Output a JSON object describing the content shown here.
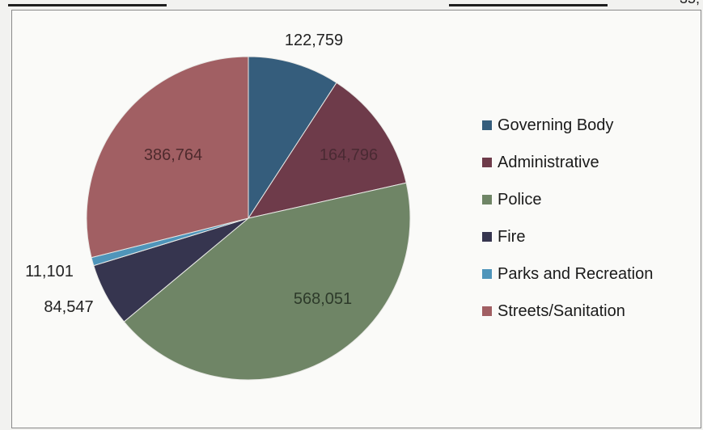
{
  "page": {
    "top_fragment": "35,"
  },
  "chart_data": {
    "type": "pie",
    "title": "",
    "categories": [
      "Governing Body",
      "Administrative",
      "Police",
      "Fire",
      "Parks and Recreation",
      "Streets/Sanitation"
    ],
    "values": [
      122759,
      164796,
      568051,
      84547,
      11101,
      386764
    ],
    "value_labels": [
      "122,759",
      "164,796",
      "568,051",
      "84,547",
      "11,101",
      "386,764"
    ],
    "colors": [
      "#355d7c",
      "#6e3b4a",
      "#6f8566",
      "#36354f",
      "#4f95ba",
      "#a15f63"
    ],
    "legend": {
      "position": "right",
      "entries": [
        "Governing Body",
        "Administrative",
        "Police",
        "Fire",
        "Parks and Recreation",
        "Streets/Sanitation"
      ]
    }
  }
}
